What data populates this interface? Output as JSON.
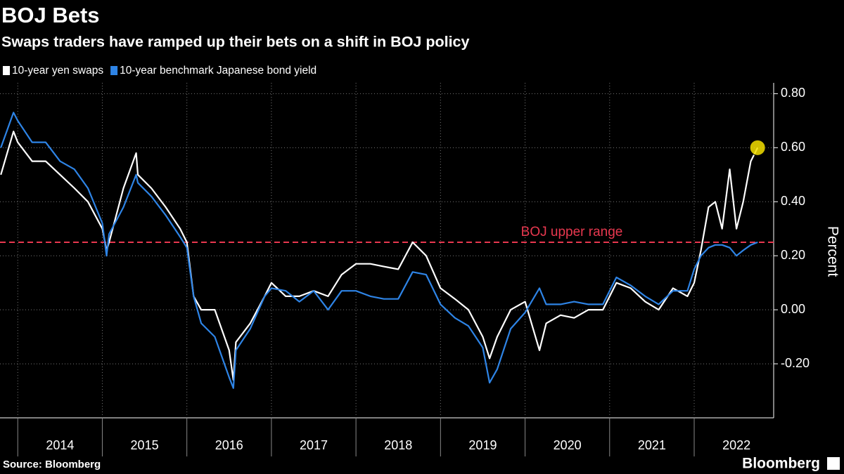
{
  "chart_data": {
    "type": "line",
    "title": "BOJ Bets",
    "subtitle": "Swaps traders have ramped up their bets on a shift in BOJ policy",
    "y_label": "Percent",
    "source": "Source: Bloomberg",
    "brand": "Bloomberg",
    "x": [
      2013.8,
      2013.95,
      2014.0,
      2014.17,
      2014.33,
      2014.5,
      2014.67,
      2014.83,
      2015.0,
      2015.05,
      2015.08,
      2015.25,
      2015.4,
      2015.42,
      2015.58,
      2015.75,
      2015.92,
      2016.0,
      2016.08,
      2016.17,
      2016.33,
      2016.5,
      2016.55,
      2016.58,
      2016.75,
      2016.92,
      2017.0,
      2017.17,
      2017.33,
      2017.5,
      2017.67,
      2017.83,
      2018.0,
      2018.17,
      2018.33,
      2018.5,
      2018.67,
      2018.83,
      2019.0,
      2019.17,
      2019.33,
      2019.5,
      2019.58,
      2019.67,
      2019.83,
      2020.0,
      2020.17,
      2020.25,
      2020.42,
      2020.58,
      2020.75,
      2020.92,
      2021.08,
      2021.25,
      2021.42,
      2021.58,
      2021.75,
      2021.92,
      2022.0,
      2022.08,
      2022.17,
      2022.25,
      2022.33,
      2022.42,
      2022.5,
      2022.58,
      2022.67,
      2022.75
    ],
    "series": [
      {
        "name": "10-year yen swaps",
        "color": "#ffffff",
        "values": [
          0.5,
          0.66,
          0.62,
          0.55,
          0.55,
          0.5,
          0.45,
          0.4,
          0.3,
          0.22,
          0.25,
          0.45,
          0.58,
          0.5,
          0.45,
          0.38,
          0.3,
          0.25,
          0.05,
          0.0,
          0.0,
          -0.15,
          -0.26,
          -0.12,
          -0.05,
          0.05,
          0.1,
          0.05,
          0.05,
          0.07,
          0.05,
          0.13,
          0.17,
          0.17,
          0.16,
          0.15,
          0.25,
          0.2,
          0.08,
          0.04,
          0.0,
          -0.1,
          -0.18,
          -0.1,
          0.0,
          0.03,
          -0.15,
          -0.05,
          -0.02,
          -0.03,
          0.0,
          0.0,
          0.1,
          0.08,
          0.03,
          0.0,
          0.08,
          0.05,
          0.1,
          0.22,
          0.38,
          0.4,
          0.3,
          0.52,
          0.3,
          0.4,
          0.55,
          0.6
        ]
      },
      {
        "name": "10-year benchmark Japanese bond yield",
        "color": "#2e84e6",
        "values": [
          0.6,
          0.73,
          0.7,
          0.62,
          0.62,
          0.55,
          0.52,
          0.45,
          0.32,
          0.2,
          0.28,
          0.38,
          0.5,
          0.47,
          0.42,
          0.35,
          0.27,
          0.23,
          0.05,
          -0.05,
          -0.1,
          -0.25,
          -0.29,
          -0.15,
          -0.07,
          0.05,
          0.08,
          0.07,
          0.03,
          0.07,
          0.0,
          0.07,
          0.07,
          0.05,
          0.04,
          0.04,
          0.14,
          0.13,
          0.02,
          -0.03,
          -0.06,
          -0.14,
          -0.27,
          -0.22,
          -0.07,
          -0.01,
          0.08,
          0.02,
          0.02,
          0.03,
          0.02,
          0.02,
          0.12,
          0.09,
          0.05,
          0.02,
          0.07,
          0.07,
          0.15,
          0.2,
          0.23,
          0.24,
          0.24,
          0.23,
          0.2,
          0.22,
          0.24,
          0.25
        ]
      }
    ],
    "reference_line": {
      "text": "BOJ upper range",
      "value": 0.25,
      "color": "#e8384f"
    },
    "highlight_color": "#f5e100",
    "xlim": [
      2013.79,
      2022.94
    ],
    "xticks": [
      {
        "value": 2014.5,
        "label": "2014"
      },
      {
        "value": 2015.5,
        "label": "2015"
      },
      {
        "value": 2016.5,
        "label": "2016"
      },
      {
        "value": 2017.5,
        "label": "2017"
      },
      {
        "value": 2018.5,
        "label": "2018"
      },
      {
        "value": 2019.5,
        "label": "2019"
      },
      {
        "value": 2020.5,
        "label": "2020"
      },
      {
        "value": 2021.5,
        "label": "2021"
      },
      {
        "value": 2022.5,
        "label": "2022"
      }
    ],
    "ylim": [
      -0.4,
      0.84
    ],
    "yticks": [
      {
        "value": -0.2,
        "label": "-0.20"
      },
      {
        "value": 0,
        "label": "0.00"
      },
      {
        "value": 0.2,
        "label": "0.20"
      },
      {
        "value": 0.4,
        "label": "0.40"
      },
      {
        "value": 0.6,
        "label": "0.60"
      },
      {
        "value": 0.8,
        "label": "0.80"
      }
    ],
    "grid": true
  }
}
